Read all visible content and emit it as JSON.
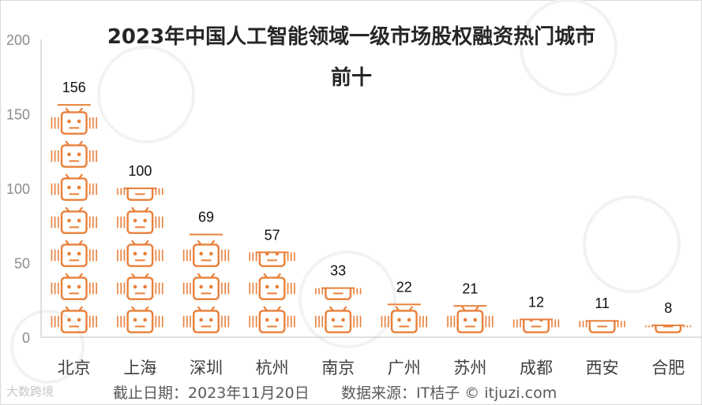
{
  "chart_data": {
    "type": "bar",
    "title_line1": "2023年中国人工智能领域一级市场股权融资热门城市",
    "title_line2": "前十",
    "categories": [
      "北京",
      "上海",
      "深圳",
      "杭州",
      "南京",
      "广州",
      "苏州",
      "成都",
      "西安",
      "合肥"
    ],
    "values": [
      156,
      100,
      69,
      57,
      33,
      22,
      21,
      12,
      11,
      8
    ],
    "ylim": [
      0,
      200
    ],
    "yticks": [
      "0",
      "50",
      "100",
      "150",
      "200"
    ],
    "grid": false,
    "bar_color": "#e8803a"
  },
  "footer": {
    "date": "截止日期：2023年11月20日",
    "source": "数据来源：IT桔子 © itjuzi.com",
    "brand": "大数跨境"
  }
}
